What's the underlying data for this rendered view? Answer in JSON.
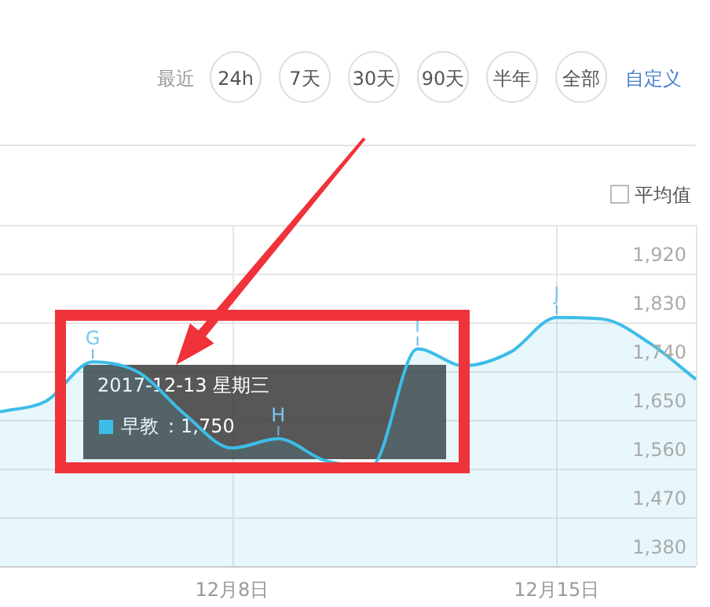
{
  "chart_data": [
    {
      "type": "other",
      "annotations": [
        "最近",
        "24h",
        "7天",
        "30天",
        "90天",
        "半年",
        "全部",
        "自定义",
        "平均值"
      ]
    },
    {
      "type": "area",
      "x": [
        "2017-12-03",
        "2017-12-04",
        "2017-12-05",
        "2017-12-06",
        "2017-12-07",
        "2017-12-08",
        "2017-12-09",
        "2017-12-10",
        "2017-12-11",
        "2017-12-12",
        "2017-12-13",
        "2017-12-14",
        "2017-12-15",
        "2017-12-16",
        "2017-12-17",
        "2017-12-18"
      ],
      "series": [
        {
          "name": "早教",
          "color": "#3dbde8",
          "values": [
            1665,
            1685,
            1757,
            1737,
            1659,
            1598,
            1615,
            1575,
            1565,
            1781,
            1750,
            1775,
            1839,
            1836,
            1792,
            1725
          ]
        }
      ],
      "xlim": [
        "2017-12-03",
        "2017-12-18"
      ],
      "xticks": [
        {
          "value": "2017-12-08",
          "label": "12月8日"
        },
        {
          "value": "2017-12-15",
          "label": "12月15日"
        }
      ],
      "ylim": [
        1380,
        2010
      ],
      "yticks": [
        {
          "value": 1380,
          "label": "1,380"
        },
        {
          "value": 1470,
          "label": "1,470"
        },
        {
          "value": 1560,
          "label": "1,560"
        },
        {
          "value": 1650,
          "label": "1,650"
        },
        {
          "value": 1740,
          "label": "1,740"
        },
        {
          "value": 1830,
          "label": "1,830"
        },
        {
          "value": 1920,
          "label": "1,920"
        }
      ],
      "grid": true,
      "annotations": [
        {
          "text": "G",
          "x": "2017-12-05",
          "y": 1757
        },
        {
          "text": "H",
          "x": "2017-12-09",
          "y": 1615
        },
        {
          "text": "I",
          "x": "2017-12-12",
          "y": 1781
        },
        {
          "text": "J",
          "x": "2017-12-15",
          "y": 1839
        },
        "2017-12-13 星期三",
        "：1,750"
      ]
    }
  ]
}
